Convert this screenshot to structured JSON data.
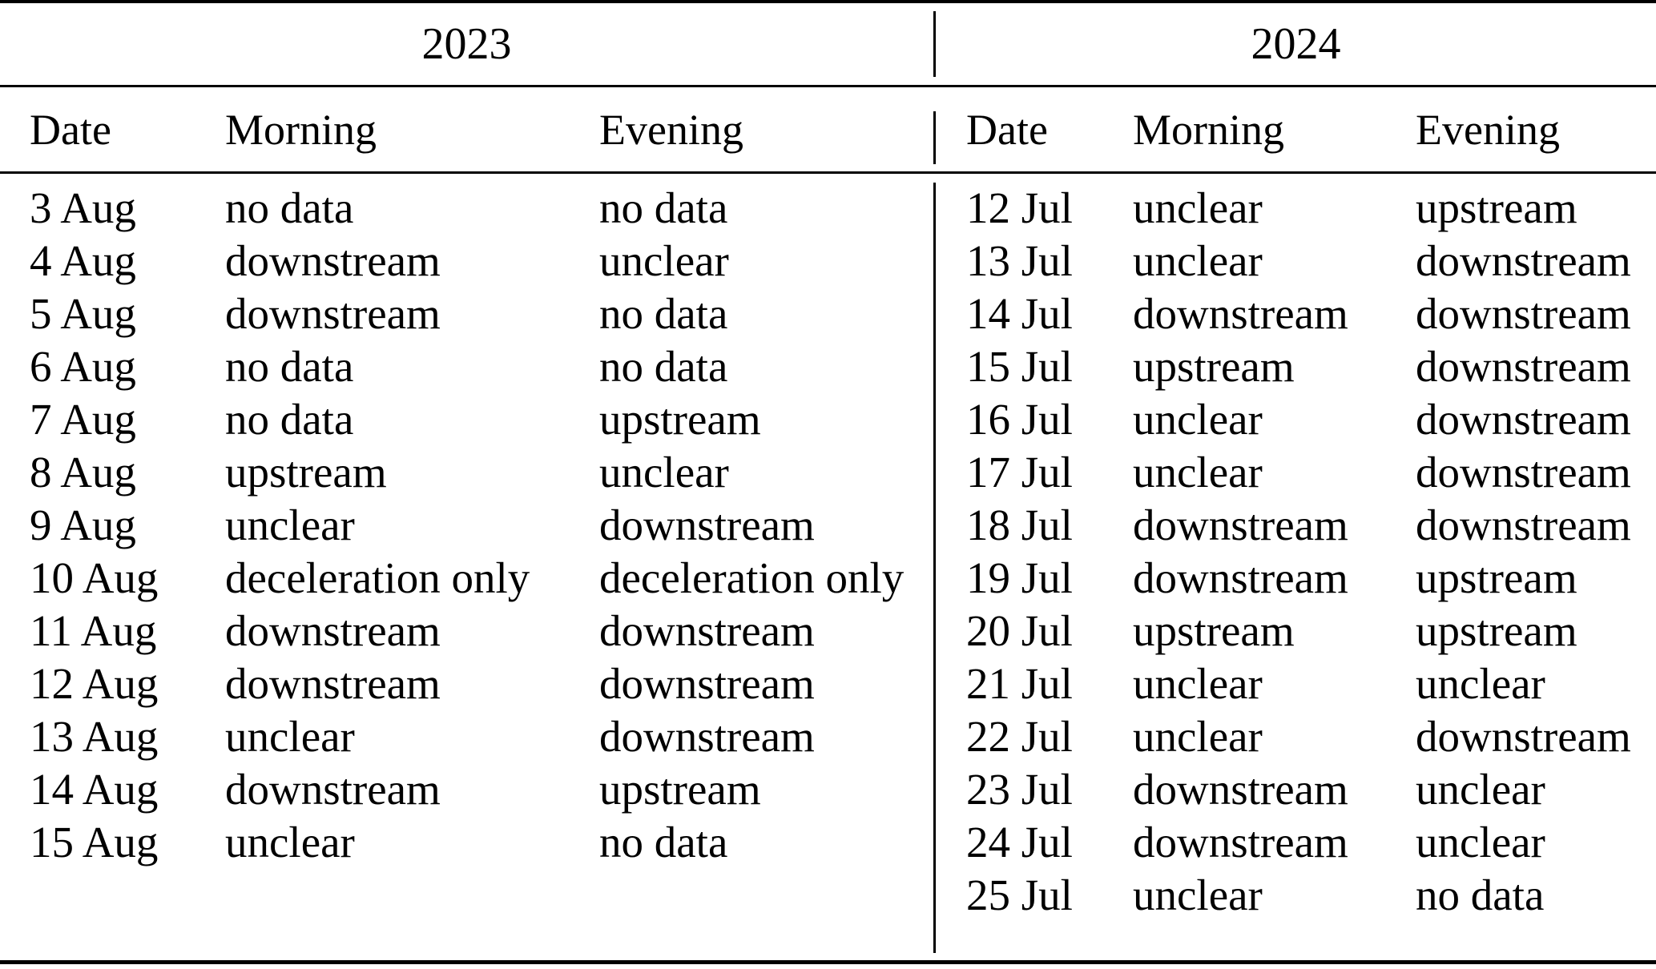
{
  "table": {
    "panels": [
      {
        "year": "2023",
        "columns": [
          "Date",
          "Morning",
          "Evening"
        ],
        "rows": [
          [
            "3 Aug",
            "no data",
            "no data"
          ],
          [
            "4 Aug",
            "downstream",
            "unclear"
          ],
          [
            "5 Aug",
            "downstream",
            "no data"
          ],
          [
            "6 Aug",
            "no data",
            "no data"
          ],
          [
            "7 Aug",
            "no data",
            "upstream"
          ],
          [
            "8 Aug",
            "upstream",
            "unclear"
          ],
          [
            "9 Aug",
            "unclear",
            "downstream"
          ],
          [
            "10 Aug",
            "deceleration only",
            "deceleration only"
          ],
          [
            "11 Aug",
            "downstream",
            "downstream"
          ],
          [
            "12 Aug",
            "downstream",
            "downstream"
          ],
          [
            "13 Aug",
            "unclear",
            "downstream"
          ],
          [
            "14 Aug",
            "downstream",
            "upstream"
          ],
          [
            "15 Aug",
            "unclear",
            "no data"
          ]
        ]
      },
      {
        "year": "2024",
        "columns": [
          "Date",
          "Morning",
          "Evening"
        ],
        "rows": [
          [
            "12 Jul",
            "unclear",
            "upstream"
          ],
          [
            "13 Jul",
            "unclear",
            "downstream"
          ],
          [
            "14 Jul",
            "downstream",
            "downstream"
          ],
          [
            "15 Jul",
            "upstream",
            "downstream"
          ],
          [
            "16 Jul",
            "unclear",
            "downstream"
          ],
          [
            "17 Jul",
            "unclear",
            "downstream"
          ],
          [
            "18 Jul",
            "downstream",
            "downstream"
          ],
          [
            "19 Jul",
            "downstream",
            "upstream"
          ],
          [
            "20 Jul",
            "upstream",
            "upstream"
          ],
          [
            "21 Jul",
            "unclear",
            "unclear"
          ],
          [
            "22 Jul",
            "unclear",
            "downstream"
          ],
          [
            "23 Jul",
            "downstream",
            "unclear"
          ],
          [
            "24 Jul",
            "downstream",
            "unclear"
          ],
          [
            "25 Jul",
            "unclear",
            "no data"
          ]
        ]
      }
    ],
    "text_color": "#000000",
    "background_color": "#ffffff"
  }
}
